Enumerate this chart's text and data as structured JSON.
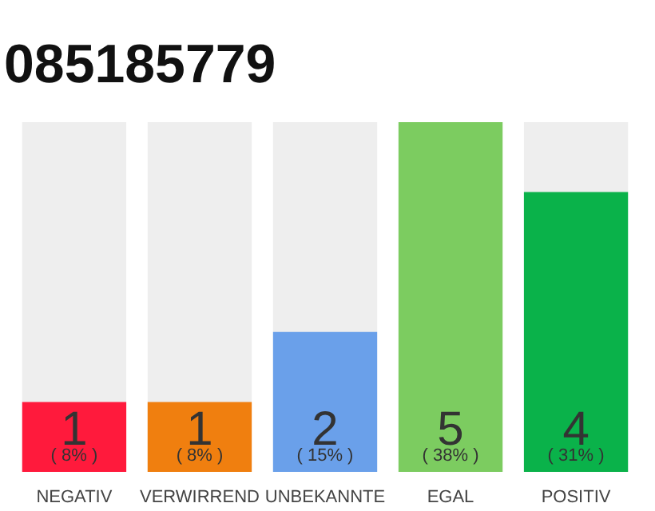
{
  "chart_data": {
    "type": "bar",
    "title": "085185779",
    "categories": [
      "NEGATIV",
      "VERWIRREND",
      "UNBEKANNTE",
      "EGAL",
      "POSITIV"
    ],
    "values": [
      1,
      1,
      2,
      5,
      4
    ],
    "colors": [
      "#ff1a3c",
      "#f07f0f",
      "#6aa0ea",
      "#7ccc60",
      "#0ab24a"
    ],
    "data_labels": true,
    "annotations": [
      {
        "text": "( 8% )",
        "x": "NEGATIV",
        "y": 0
      },
      {
        "text": "( 8% )",
        "x": "VERWIRREND",
        "y": 0
      },
      {
        "text": "( 15% )",
        "x": "UNBEKANNTE",
        "y": 0
      },
      {
        "text": "( 38% )",
        "x": "EGAL",
        "y": 0
      },
      {
        "text": "( 31% )",
        "x": "POSITIV",
        "y": 0
      }
    ],
    "grid": false,
    "tick_labels": "x"
  }
}
